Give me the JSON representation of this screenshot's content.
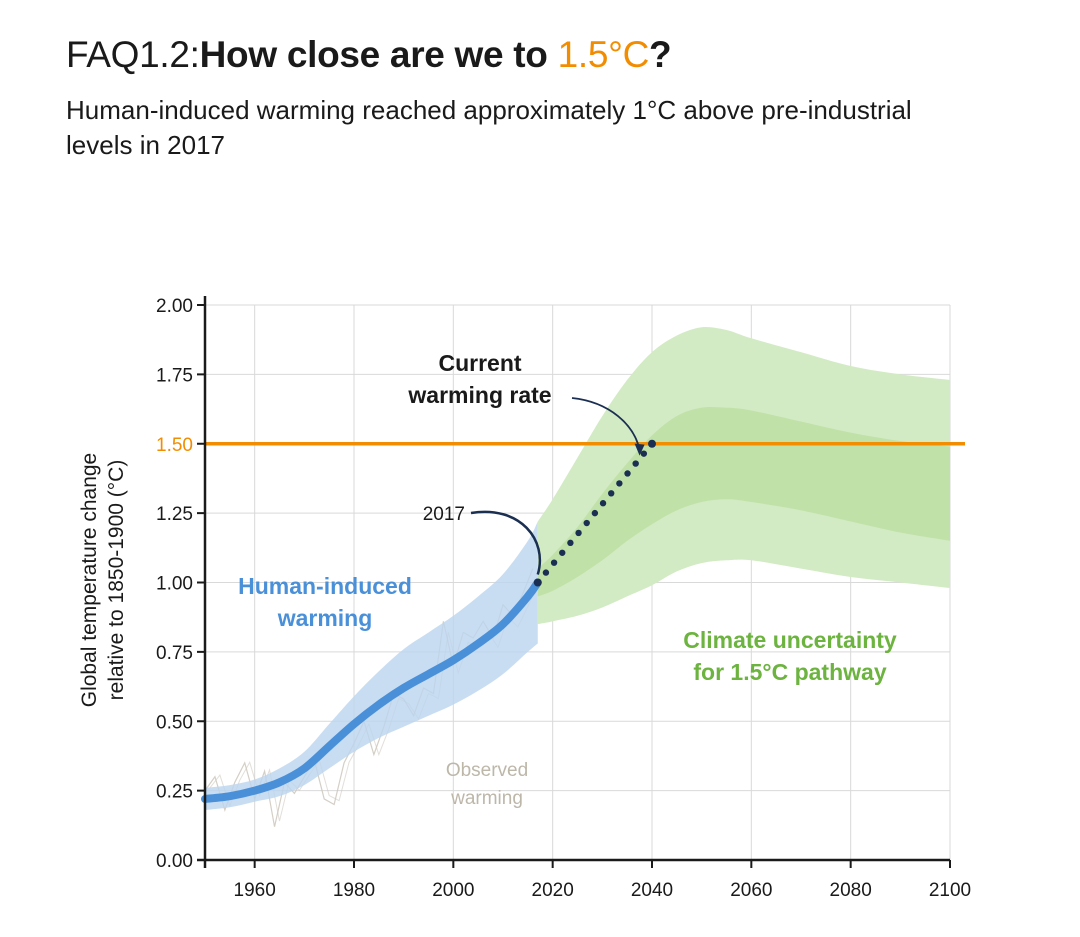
{
  "header": {
    "prefix": "FAQ1.2:",
    "question_start": "How close are we to ",
    "question_highlight": "1.5°C",
    "question_end": "?",
    "subtitle": "Human-induced warming reached approximately 1°C above pre-industrial levels in 2017"
  },
  "colors": {
    "threshold": "#f28c00",
    "human": "#4a90d9",
    "human_band": "#bcd4ef",
    "green_outer": "#d3ebc4",
    "green_inner": "#b9df9f",
    "green_label": "#6cb33f",
    "navy": "#1b2f52",
    "observed": "#cfcac0",
    "grid": "#d9d9d9"
  },
  "chart_data": {
    "type": "line",
    "ylabel": [
      "Global temperature change",
      "relative to 1850-1900 (°C)"
    ],
    "xlim": [
      1950,
      2100
    ],
    "ylim": [
      0,
      2
    ],
    "x_ticks": [
      "1960",
      "1980",
      "2000",
      "2020",
      "2040",
      "2060",
      "2080",
      "2100"
    ],
    "y_ticks": [
      "0.00",
      "0.25",
      "0.50",
      "0.75",
      "1.00",
      "1.25",
      "1.50",
      "1.75",
      "2.00"
    ],
    "threshold": {
      "value": 1.5,
      "label": "1.50"
    },
    "series": [
      {
        "name": "Human-induced warming",
        "label_lines": [
          "Human-induced",
          "warming"
        ],
        "x": [
          1950,
          1955,
          1960,
          1965,
          1970,
          1975,
          1980,
          1985,
          1990,
          1995,
          2000,
          2005,
          2010,
          2015,
          2017
        ],
        "y": [
          0.22,
          0.23,
          0.25,
          0.28,
          0.33,
          0.41,
          0.49,
          0.56,
          0.62,
          0.67,
          0.72,
          0.78,
          0.85,
          0.95,
          1.0
        ],
        "band_low": [
          0.18,
          0.19,
          0.21,
          0.23,
          0.27,
          0.33,
          0.39,
          0.44,
          0.48,
          0.52,
          0.56,
          0.61,
          0.67,
          0.75,
          0.78
        ],
        "band_high": [
          0.26,
          0.27,
          0.29,
          0.33,
          0.39,
          0.49,
          0.59,
          0.68,
          0.76,
          0.82,
          0.88,
          0.95,
          1.03,
          1.15,
          1.22
        ]
      },
      {
        "name": "Current warming rate",
        "label_lines": [
          "Current",
          "warming rate"
        ],
        "x": [
          2017,
          2040
        ],
        "y": [
          1.0,
          1.5
        ]
      },
      {
        "name": "Climate uncertainty for 1.5°C pathway",
        "label_lines": [
          "Climate uncertainty",
          "for 1.5°C pathway"
        ],
        "x": [
          2017,
          2020,
          2025,
          2030,
          2035,
          2040,
          2045,
          2050,
          2055,
          2060,
          2070,
          2080,
          2090,
          2100
        ],
        "outer_low": [
          0.85,
          0.86,
          0.88,
          0.91,
          0.95,
          0.99,
          1.04,
          1.07,
          1.08,
          1.08,
          1.05,
          1.02,
          1.0,
          0.98
        ],
        "outer_high": [
          1.22,
          1.3,
          1.45,
          1.6,
          1.73,
          1.83,
          1.89,
          1.92,
          1.91,
          1.88,
          1.83,
          1.78,
          1.75,
          1.73
        ],
        "inner_low": [
          0.95,
          0.97,
          1.02,
          1.08,
          1.15,
          1.21,
          1.26,
          1.29,
          1.3,
          1.29,
          1.26,
          1.22,
          1.18,
          1.15
        ],
        "inner_high": [
          1.05,
          1.1,
          1.2,
          1.32,
          1.43,
          1.53,
          1.6,
          1.63,
          1.63,
          1.62,
          1.58,
          1.54,
          1.51,
          1.49
        ]
      },
      {
        "name": "Observed warming",
        "label_lines": [
          "Observed",
          "warming"
        ],
        "x": [
          1950,
          1952,
          1954,
          1956,
          1958,
          1960,
          1962,
          1964,
          1966,
          1968,
          1970,
          1972,
          1974,
          1976,
          1978,
          1980,
          1982,
          1984,
          1986,
          1988,
          1990,
          1992,
          1994,
          1996,
          1998,
          2000,
          2002,
          2004,
          2006,
          2008,
          2010,
          2012,
          2014,
          2016
        ],
        "y": [
          0.25,
          0.3,
          0.18,
          0.28,
          0.35,
          0.22,
          0.32,
          0.12,
          0.28,
          0.24,
          0.3,
          0.36,
          0.22,
          0.2,
          0.35,
          0.42,
          0.5,
          0.38,
          0.48,
          0.6,
          0.58,
          0.52,
          0.62,
          0.6,
          0.86,
          0.7,
          0.82,
          0.8,
          0.86,
          0.8,
          0.92,
          0.88,
          0.96,
          1.05
        ]
      }
    ],
    "annotations": [
      {
        "text": "2017",
        "x": 2017,
        "y": 1.0
      }
    ]
  }
}
